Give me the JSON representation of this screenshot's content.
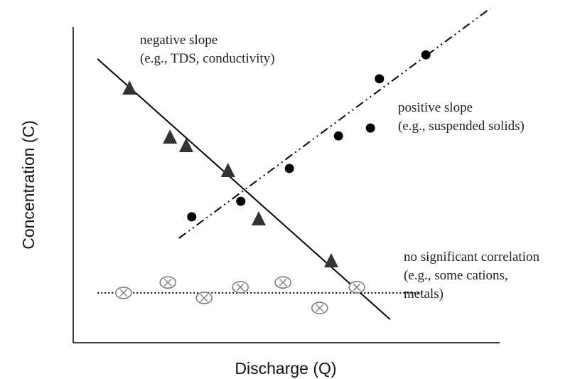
{
  "chart_data": {
    "type": "scatter",
    "x_label": "Discharge (Q)",
    "y_label": "Concentration (C)",
    "xlim": [
      0,
      100
    ],
    "ylim": [
      0,
      100
    ],
    "annotations": [
      [
        "negative slope",
        "(e.g., TDS, conductivity)"
      ],
      [
        "positive slope",
        "(e.g., suspended solids)"
      ],
      [
        "no significant correlation",
        "(e.g., some cations,",
        "metals)"
      ]
    ],
    "series": [
      {
        "type": "scatter",
        "marker": "triangle",
        "color": "#333333",
        "x": [
          13.2,
          22.7,
          26.5,
          36.3,
          43.5,
          60.5
        ],
        "values": [
          80.6,
          65.1,
          62.4,
          54.5,
          39.2,
          25.9
        ]
      },
      {
        "type": "scatter",
        "marker": "circle",
        "color": "#000000",
        "x": [
          27.8,
          39.3,
          50.7,
          62.2,
          69.7,
          71.8,
          82.7
        ],
        "values": [
          39.9,
          44.8,
          55.2,
          65.5,
          68.0,
          83.6,
          91.2
        ]
      },
      {
        "type": "scatter",
        "marker": "crossed-circle",
        "color": "#777777",
        "x": [
          11.8,
          22.2,
          30.7,
          39.2,
          49.2,
          57.8,
          66.5
        ],
        "values": [
          15.8,
          19.1,
          14.2,
          17.6,
          19.1,
          11.0,
          17.6
        ]
      },
      {
        "type": "line",
        "dash": "solid",
        "color": "#000000",
        "x": [
          5.7,
          74.3
        ],
        "values": [
          89.9,
          7.4
        ]
      },
      {
        "type": "line",
        "dash": "dash-dot",
        "color": "#000000",
        "x": [
          24.8,
          97.8
        ],
        "values": [
          33.1,
          105.9
        ]
      },
      {
        "type": "line",
        "dash": "dotted",
        "color": "#000000",
        "x": [
          5.7,
          82
        ],
        "values": [
          15.8,
          15.8
        ]
      }
    ]
  }
}
